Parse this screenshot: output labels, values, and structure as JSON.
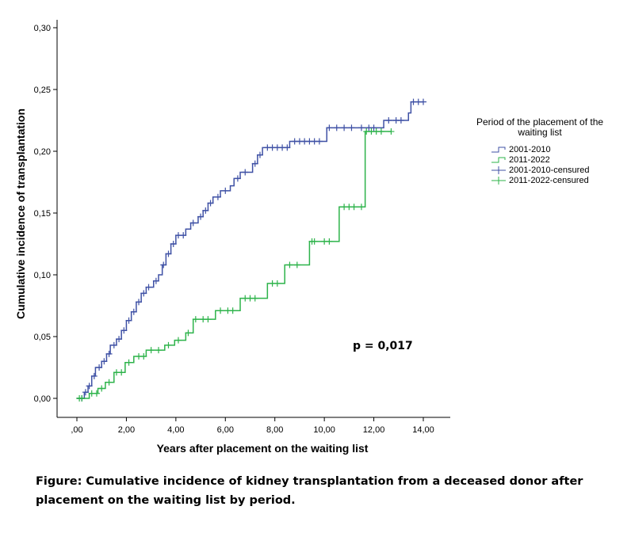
{
  "chart_data": {
    "type": "line",
    "subtype": "step",
    "xlabel": "Years after placement on the waiting list",
    "ylabel": "Cumulative incidence of transplantation",
    "xlim": [
      0,
      14
    ],
    "ylim": [
      0,
      0.3
    ],
    "xticks": [
      ",00",
      "2,00",
      "4,00",
      "6,00",
      "8,00",
      "10,00",
      "12,00",
      "14,00"
    ],
    "yticks": [
      "0,00",
      "0,05",
      "0,10",
      "0,15",
      "0,20",
      "0,25",
      "0,30"
    ],
    "annotation": "p = 0,017",
    "legend_title": "Period of the placement of the waiting list",
    "legend_position": "right",
    "legend": [
      "2001-2010",
      "2011-2022",
      "2001-2010-censured",
      "2011-2022-censured"
    ],
    "series": [
      {
        "name": "2001-2010",
        "color": "#3f51a5",
        "end": 14,
        "steps": [
          [
            0,
            0
          ],
          [
            0.3,
            0.005
          ],
          [
            0.45,
            0.01
          ],
          [
            0.6,
            0.018
          ],
          [
            0.75,
            0.025
          ],
          [
            1,
            0.03
          ],
          [
            1.2,
            0.036
          ],
          [
            1.35,
            0.043
          ],
          [
            1.6,
            0.048
          ],
          [
            1.8,
            0.055
          ],
          [
            2,
            0.063
          ],
          [
            2.2,
            0.07
          ],
          [
            2.4,
            0.078
          ],
          [
            2.6,
            0.085
          ],
          [
            2.8,
            0.09
          ],
          [
            3.1,
            0.095
          ],
          [
            3.3,
            0.1
          ],
          [
            3.45,
            0.108
          ],
          [
            3.6,
            0.117
          ],
          [
            3.8,
            0.125
          ],
          [
            4,
            0.132
          ],
          [
            4.4,
            0.137
          ],
          [
            4.6,
            0.142
          ],
          [
            4.9,
            0.147
          ],
          [
            5.1,
            0.152
          ],
          [
            5.3,
            0.158
          ],
          [
            5.5,
            0.163
          ],
          [
            5.8,
            0.168
          ],
          [
            6.2,
            0.172
          ],
          [
            6.35,
            0.178
          ],
          [
            6.6,
            0.183
          ],
          [
            7.1,
            0.19
          ],
          [
            7.3,
            0.197
          ],
          [
            7.5,
            0.203
          ],
          [
            8.6,
            0.208
          ],
          [
            10.1,
            0.219
          ],
          [
            12.4,
            0.225
          ],
          [
            13.4,
            0.231
          ],
          [
            13.5,
            0.24
          ]
        ],
        "censored": [
          0.2,
          0.35,
          0.5,
          0.7,
          0.9,
          1.1,
          1.3,
          1.5,
          1.7,
          1.9,
          2.1,
          2.3,
          2.5,
          2.7,
          2.9,
          3.2,
          3.5,
          3.7,
          3.9,
          4.1,
          4.3,
          4.7,
          5,
          5.2,
          5.4,
          5.7,
          6,
          6.5,
          6.8,
          7.2,
          7.4,
          7.7,
          7.9,
          8.1,
          8.3,
          8.5,
          8.8,
          9,
          9.2,
          9.4,
          9.6,
          9.8,
          10.2,
          10.5,
          10.8,
          11.1,
          11.5,
          11.8,
          12,
          12.6,
          12.9,
          13.1,
          13.6,
          13.8,
          14
        ]
      },
      {
        "name": "2011-2022",
        "color": "#2db34a",
        "end": 12.7,
        "steps": [
          [
            0,
            0
          ],
          [
            0.5,
            0.004
          ],
          [
            0.85,
            0.008
          ],
          [
            1.15,
            0.013
          ],
          [
            1.5,
            0.021
          ],
          [
            1.95,
            0.029
          ],
          [
            2.3,
            0.034
          ],
          [
            2.8,
            0.039
          ],
          [
            3.55,
            0.043
          ],
          [
            3.95,
            0.047
          ],
          [
            4.4,
            0.053
          ],
          [
            4.7,
            0.064
          ],
          [
            5.6,
            0.071
          ],
          [
            6.6,
            0.081
          ],
          [
            7.7,
            0.093
          ],
          [
            8.4,
            0.108
          ],
          [
            9.4,
            0.127
          ],
          [
            10.6,
            0.155
          ],
          [
            11.65,
            0.216
          ]
        ],
        "censored": [
          0.1,
          0.2,
          0.6,
          0.8,
          1,
          1.3,
          1.6,
          1.8,
          2.1,
          2.5,
          2.7,
          3,
          3.3,
          3.7,
          4.1,
          4.5,
          4.8,
          5.1,
          5.3,
          5.8,
          6.1,
          6.3,
          6.8,
          7,
          7.2,
          7.9,
          8.1,
          8.6,
          8.9,
          9.5,
          9.6,
          10,
          10.2,
          10.8,
          11,
          11.2,
          11.5,
          11.7,
          11.9,
          12.1,
          12.3,
          12.7
        ]
      }
    ]
  },
  "caption": "Figure: Cumulative incidence of kidney transplantation from a deceased donor after placement on the waiting list by period."
}
